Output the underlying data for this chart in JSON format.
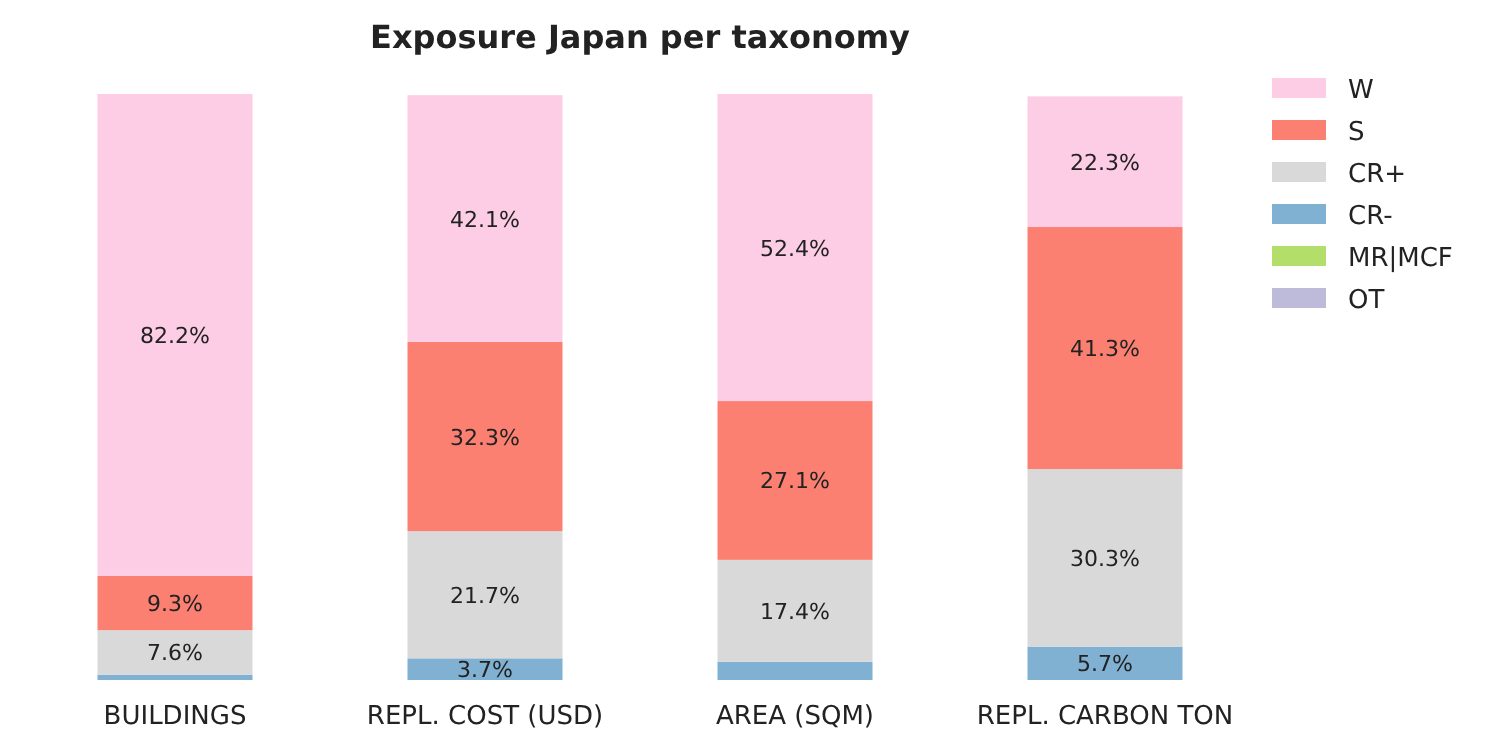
{
  "chart_data": {
    "type": "bar",
    "title": "Exposure Japan per taxonomy",
    "categories": [
      "BUILDINGS",
      "REPL. COST (USD)",
      "AREA (SQM)",
      "REPL. CARBON TON"
    ],
    "stacked": true,
    "ylim": [
      0,
      100
    ],
    "tick_labels": "x",
    "legend": "top right",
    "series": [
      {
        "name": "OT",
        "color": "#bebada",
        "values": [
          0,
          0,
          0,
          0
        ],
        "value_labels": [
          null,
          null,
          null,
          null
        ]
      },
      {
        "name": "MR|MCF",
        "color": "#b3de69",
        "values": [
          0,
          0,
          0,
          0
        ],
        "value_labels": [
          null,
          null,
          null,
          null
        ]
      },
      {
        "name": "CR-",
        "color": "#80b1d3",
        "values": [
          0.9,
          3.7,
          3.1,
          5.7
        ],
        "value_labels": [
          null,
          "3.7%",
          null,
          "5.7%"
        ]
      },
      {
        "name": "CR+",
        "color": "#d9d9d9",
        "values": [
          7.6,
          21.7,
          17.4,
          30.3
        ],
        "value_labels": [
          "7.6%",
          "21.7%",
          "17.4%",
          "30.3%"
        ]
      },
      {
        "name": "S",
        "color": "#fb8072",
        "values": [
          9.3,
          32.3,
          27.1,
          41.3
        ],
        "value_labels": [
          "9.3%",
          "32.3%",
          "27.1%",
          "41.3%"
        ]
      },
      {
        "name": "W",
        "color": "#fccde5",
        "values": [
          82.2,
          42.1,
          52.4,
          22.3
        ],
        "value_labels": [
          "82.2%",
          "42.1%",
          "52.4%",
          "22.3%"
        ]
      }
    ]
  }
}
